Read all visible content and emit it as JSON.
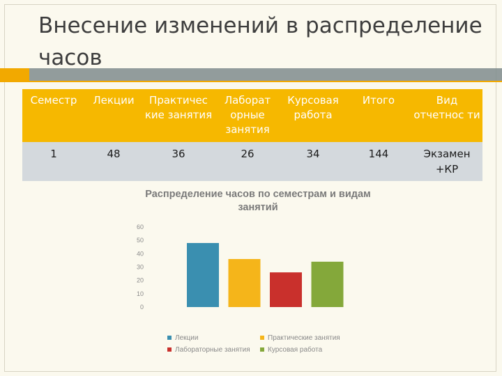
{
  "slide": {
    "title": "Внесение изменений в распределение часов"
  },
  "table": {
    "headers": [
      "Семестр",
      "Лекции",
      "Практичес кие занятия",
      "Лаборат орные занятия",
      "Курсовая работа",
      "Итого",
      "Вид отчетнос ти"
    ],
    "row": [
      "1",
      "48",
      "36",
      "26",
      "34",
      "144",
      "Экзамен +КР"
    ]
  },
  "chart_data": {
    "type": "bar",
    "title": "Распределение часов по семестрам и видам занятий",
    "ylim": [
      0,
      60
    ],
    "yticks": [
      "60",
      "50",
      "40",
      "30",
      "20",
      "10",
      "0"
    ],
    "series": [
      {
        "name": "Лекции",
        "values": [
          48
        ],
        "color": "#3a8fb0"
      },
      {
        "name": "Практические занятия",
        "values": [
          36
        ],
        "color": "#f5b51a"
      },
      {
        "name": "Лабораторные занятия",
        "values": [
          26
        ],
        "color": "#c9302c"
      },
      {
        "name": "Курсовая работа",
        "values": [
          34
        ],
        "color": "#84a83a"
      }
    ],
    "grid": false,
    "legend_position": "bottom"
  }
}
